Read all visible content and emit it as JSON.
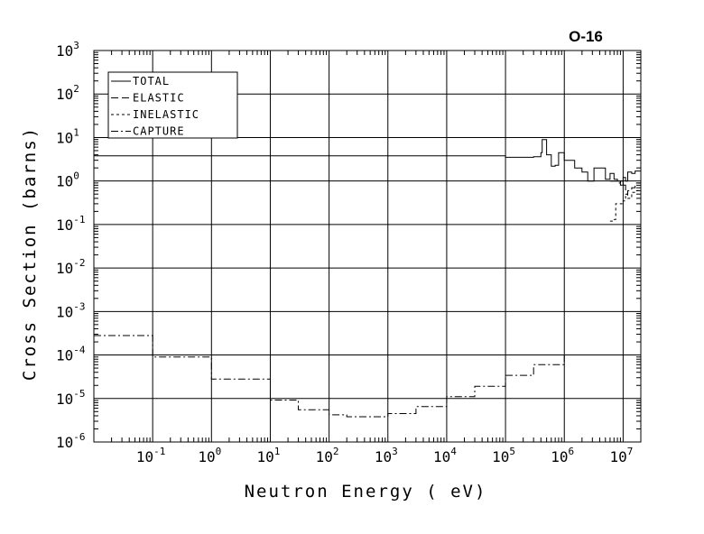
{
  "chart_data": {
    "type": "line",
    "title": "O-16",
    "xlabel": "Neutron Energy ( eV)",
    "ylabel": "Cross Section (barns)",
    "x_scale": "log",
    "y_scale": "log",
    "xlim": [
      0.01,
      20000000
    ],
    "ylim": [
      1e-06,
      1000
    ],
    "grid": true,
    "legend_position": "top-left",
    "x_ticks": [
      {
        "base": "10",
        "exp": "-1",
        "value": 0.1
      },
      {
        "base": "10",
        "exp": "0",
        "value": 1
      },
      {
        "base": "10",
        "exp": "1",
        "value": 10
      },
      {
        "base": "10",
        "exp": "2",
        "value": 100
      },
      {
        "base": "10",
        "exp": "3",
        "value": 1000
      },
      {
        "base": "10",
        "exp": "4",
        "value": 10000
      },
      {
        "base": "10",
        "exp": "5",
        "value": 100000
      },
      {
        "base": "10",
        "exp": "6",
        "value": 1000000
      },
      {
        "base": "10",
        "exp": "7",
        "value": 10000000
      }
    ],
    "y_ticks": [
      {
        "base": "10",
        "exp": "3",
        "value": 1000
      },
      {
        "base": "10",
        "exp": "2",
        "value": 100
      },
      {
        "base": "10",
        "exp": "1",
        "value": 10
      },
      {
        "base": "10",
        "exp": "0",
        "value": 1
      },
      {
        "base": "10",
        "exp": "-1",
        "value": 0.1
      },
      {
        "base": "10",
        "exp": "-2",
        "value": 0.01
      },
      {
        "base": "10",
        "exp": "-3",
        "value": 0.001
      },
      {
        "base": "10",
        "exp": "-4",
        "value": 0.0001
      },
      {
        "base": "10",
        "exp": "-5",
        "value": 1e-05
      },
      {
        "base": "10",
        "exp": "-6",
        "value": 1e-06
      }
    ],
    "series": [
      {
        "name": "TOTAL",
        "style": "solid",
        "points": [
          [
            0.01,
            3.8
          ],
          [
            100000,
            3.8
          ],
          [
            100000,
            3.5
          ],
          [
            300000,
            3.6
          ],
          [
            400000,
            4.5
          ],
          [
            420000,
            9.0
          ],
          [
            480000,
            9.0
          ],
          [
            500000,
            4.0
          ],
          [
            600000,
            2.2
          ],
          [
            700000,
            2.3
          ],
          [
            800000,
            4.5
          ],
          [
            900000,
            4.5
          ],
          [
            1000000,
            3.0
          ],
          [
            1500000,
            2.0
          ],
          [
            2000000,
            1.6
          ],
          [
            2500000,
            1.0
          ],
          [
            3000000,
            1.0
          ],
          [
            3200000,
            2.0
          ],
          [
            4000000,
            2.0
          ],
          [
            5000000,
            1.1
          ],
          [
            6000000,
            1.5
          ],
          [
            7000000,
            1.1
          ],
          [
            8000000,
            1.0
          ],
          [
            9000000,
            0.8
          ],
          [
            10000000,
            1.2
          ],
          [
            11000000,
            1.0
          ],
          [
            12000000,
            1.6
          ],
          [
            14000000,
            1.5
          ],
          [
            16000000,
            1.7
          ],
          [
            20000000,
            1.8
          ]
        ]
      },
      {
        "name": "ELASTIC",
        "style": "dashed",
        "points": [
          [
            6000000,
            1.0
          ],
          [
            8000000,
            0.9
          ],
          [
            9000000,
            1.0
          ],
          [
            10000000,
            0.8
          ],
          [
            11000000,
            0.5
          ],
          [
            12000000,
            0.6
          ],
          [
            14000000,
            0.7
          ],
          [
            16000000,
            0.9
          ],
          [
            20000000,
            1.0
          ]
        ]
      },
      {
        "name": "INELASTIC",
        "style": "dotted",
        "points": [
          [
            6000000,
            0.12
          ],
          [
            7000000,
            0.13
          ],
          [
            7500000,
            0.3
          ],
          [
            9000000,
            0.3
          ],
          [
            10000000,
            0.35
          ],
          [
            11000000,
            0.5
          ],
          [
            12000000,
            0.4
          ],
          [
            14000000,
            0.55
          ],
          [
            16000000,
            0.6
          ],
          [
            20000000,
            0.6
          ]
        ]
      },
      {
        "name": "CAPTURE",
        "style": "dash-dot",
        "points": [
          [
            0.01,
            0.00028
          ],
          [
            0.1,
            9e-05
          ],
          [
            1,
            2.8e-05
          ],
          [
            10,
            9.2e-06
          ],
          [
            30,
            5.5e-06
          ],
          [
            100,
            4.2e-06
          ],
          [
            200,
            3.8e-06
          ],
          [
            400,
            3.8e-06
          ],
          [
            1000,
            4.5e-06
          ],
          [
            3000,
            6.5e-06
          ],
          [
            10000,
            1.1e-05
          ],
          [
            30000,
            1.9e-05
          ],
          [
            100000,
            3.4e-05
          ],
          [
            300000,
            6e-05
          ],
          [
            1000000,
            0.0001
          ]
        ]
      }
    ]
  }
}
